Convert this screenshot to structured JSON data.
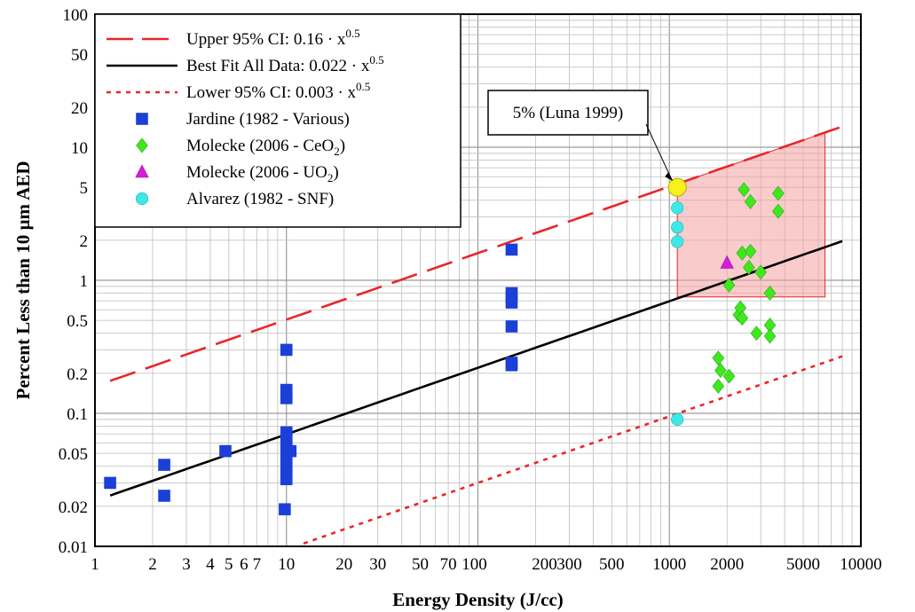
{
  "chart_data": {
    "type": "scatter",
    "xlabel": "Energy Density (J/cc)",
    "ylabel": "Percent Less than 10 µm AED",
    "x_scale": "log",
    "y_scale": "log",
    "xlim": [
      1,
      10000
    ],
    "ylim": [
      0.01,
      100
    ],
    "grid": true,
    "legend_position": "top-left",
    "x_tick_labels": [
      "1",
      "2",
      "3",
      "4",
      "5",
      "6",
      "7",
      "10",
      "20",
      "30",
      "50",
      "70",
      "100",
      "200",
      "300",
      "500",
      "1000",
      "2000",
      "5000",
      "10000"
    ],
    "x_ticks": [
      1,
      2,
      3,
      4,
      5,
      6,
      7,
      10,
      20,
      30,
      50,
      70,
      100,
      200,
      300,
      500,
      1000,
      2000,
      5000,
      10000
    ],
    "y_tick_labels": [
      "0.01",
      "0.02",
      "0.05",
      "0.1",
      "0.2",
      "0.5",
      "1",
      "2",
      "5",
      "10",
      "20",
      "50",
      "100"
    ],
    "y_ticks": [
      0.01,
      0.02,
      0.05,
      0.1,
      0.2,
      0.5,
      1,
      2,
      5,
      10,
      20,
      50,
      100
    ],
    "lines": [
      {
        "legend_prefix": "Upper 95% CI: 0.16 · x",
        "legend_exp": "0.5",
        "coef": 0.16,
        "exponent": 0.5,
        "x_range": [
          1.2,
          8000
        ],
        "color": "#e8262a",
        "style": "long-dash"
      },
      {
        "legend_prefix": "Best Fit All Data: 0.022 · x",
        "legend_exp": "0.5",
        "coef": 0.022,
        "exponent": 0.5,
        "x_range": [
          1.2,
          8000
        ],
        "color": "#000000",
        "style": "solid"
      },
      {
        "legend_prefix": "Lower 95% CI: 0.003 · x",
        "legend_exp": "0.5",
        "coef": 0.003,
        "exponent": 0.5,
        "x_range": [
          11,
          8000
        ],
        "color": "#e8262a",
        "style": "short-dash"
      }
    ],
    "series": [
      {
        "legend_main": "Jardine (1982 - Various)",
        "legend_sub": "",
        "legend_tail": "",
        "marker": "square",
        "color": "#1c3fd8",
        "points": [
          [
            1.2,
            0.03
          ],
          [
            2.3,
            0.041
          ],
          [
            2.3,
            0.024
          ],
          [
            4.8,
            0.052
          ],
          [
            10,
            0.3
          ],
          [
            10,
            0.15
          ],
          [
            10,
            0.14
          ],
          [
            10,
            0.13
          ],
          [
            10,
            0.072
          ],
          [
            10,
            0.065
          ],
          [
            10,
            0.058
          ],
          [
            10,
            0.05
          ],
          [
            10,
            0.045
          ],
          [
            10,
            0.04
          ],
          [
            10,
            0.035
          ],
          [
            10,
            0.032
          ],
          [
            10.5,
            0.052
          ],
          [
            9.8,
            0.019
          ],
          [
            150,
            1.7
          ],
          [
            150,
            0.8
          ],
          [
            150,
            0.75
          ],
          [
            150,
            0.68
          ],
          [
            150,
            0.45
          ],
          [
            150,
            0.24
          ],
          [
            150,
            0.23
          ]
        ]
      },
      {
        "legend_main": "Molecke (2006 - CeO",
        "legend_sub": "2",
        "legend_tail": ")",
        "marker": "diamond",
        "color": "#3ee81c",
        "points": [
          [
            2450,
            4.8
          ],
          [
            2650,
            3.9
          ],
          [
            3700,
            4.5
          ],
          [
            3700,
            3.3
          ],
          [
            2400,
            1.6
          ],
          [
            2650,
            1.65
          ],
          [
            2600,
            1.25
          ],
          [
            3000,
            1.15
          ],
          [
            2050,
            0.92
          ],
          [
            3350,
            0.8
          ],
          [
            2300,
            0.55
          ],
          [
            2350,
            0.62
          ],
          [
            2400,
            0.52
          ],
          [
            2850,
            0.4
          ],
          [
            3350,
            0.46
          ],
          [
            3350,
            0.38
          ],
          [
            1800,
            0.26
          ],
          [
            1850,
            0.21
          ],
          [
            2050,
            0.19
          ],
          [
            1800,
            0.16
          ]
        ]
      },
      {
        "legend_main": "Molecke (2006 - UO",
        "legend_sub": "2",
        "legend_tail": ")",
        "marker": "triangle",
        "color": "#d81cd8",
        "points": [
          [
            2000,
            1.35
          ]
        ]
      },
      {
        "legend_main": "Alvarez (1982 - SNF)",
        "legend_sub": "",
        "legend_tail": "",
        "marker": "circle",
        "color": "#3ee8e8",
        "points": [
          [
            1100,
            3.5
          ],
          [
            1100,
            2.5
          ],
          [
            1100,
            1.95
          ],
          [
            1100,
            0.09
          ]
        ]
      }
    ],
    "annotation": {
      "text": "5% (Luna 1999)",
      "point": [
        1100,
        5
      ],
      "point_color": "#f7f21c"
    },
    "shaded_region": {
      "color": "#f4a0a0",
      "x_from": 1100,
      "x_to": 6500,
      "y_bottom": 0.75
    }
  }
}
